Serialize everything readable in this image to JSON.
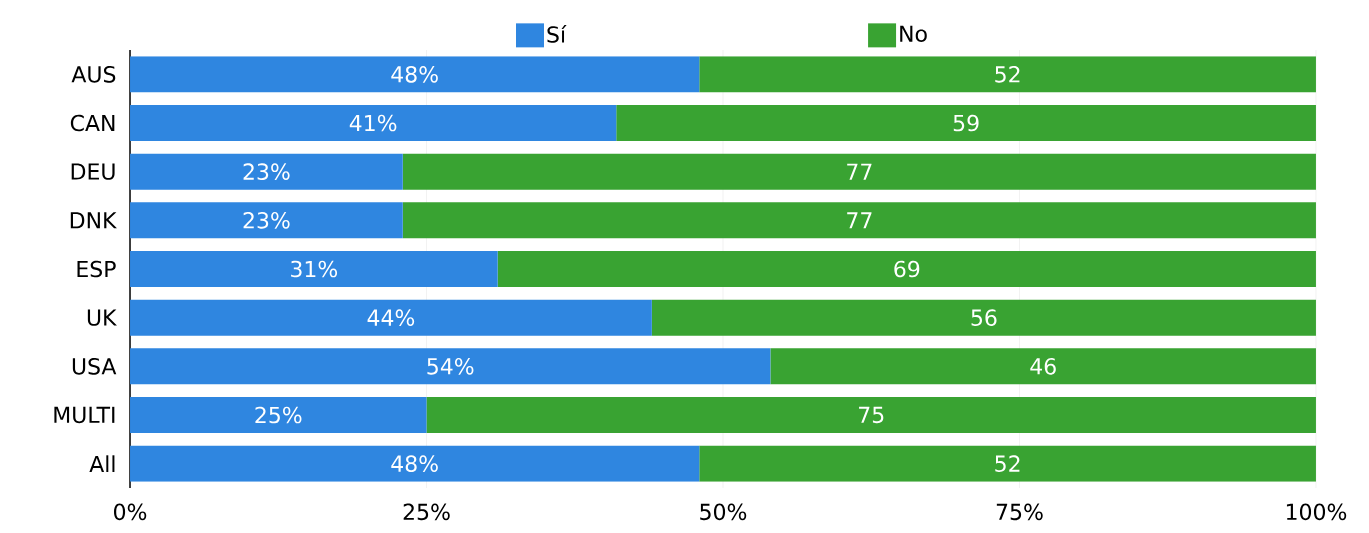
{
  "chart_data": {
    "type": "bar",
    "orientation": "horizontal",
    "stacked": true,
    "categories": [
      "AUS",
      "CAN",
      "DEU",
      "DNK",
      "ESP",
      "UK",
      "USA",
      "MULTI",
      "All"
    ],
    "series": [
      {
        "name": "Sí",
        "color": "#2f86e0",
        "values": [
          48,
          41,
          23,
          23,
          31,
          44,
          54,
          25,
          48
        ],
        "value_labels": [
          "48%",
          "41%",
          "23%",
          "23%",
          "31%",
          "44%",
          "54%",
          "25%",
          "48%"
        ]
      },
      {
        "name": "No",
        "color": "#39a332",
        "values": [
          52,
          59,
          77,
          77,
          69,
          56,
          46,
          75,
          52
        ],
        "value_labels": [
          "52",
          "59",
          "77",
          "77",
          "69",
          "56",
          "46",
          "75",
          "52"
        ]
      }
    ],
    "xlim": [
      0,
      100
    ],
    "xticks": [
      {
        "value": 0,
        "label": "0%"
      },
      {
        "value": 25,
        "label": "25%"
      },
      {
        "value": 50,
        "label": "50%"
      },
      {
        "value": 75,
        "label": "75%"
      },
      {
        "value": 100,
        "label": "100%"
      }
    ],
    "grid": "x",
    "legend": "top"
  }
}
